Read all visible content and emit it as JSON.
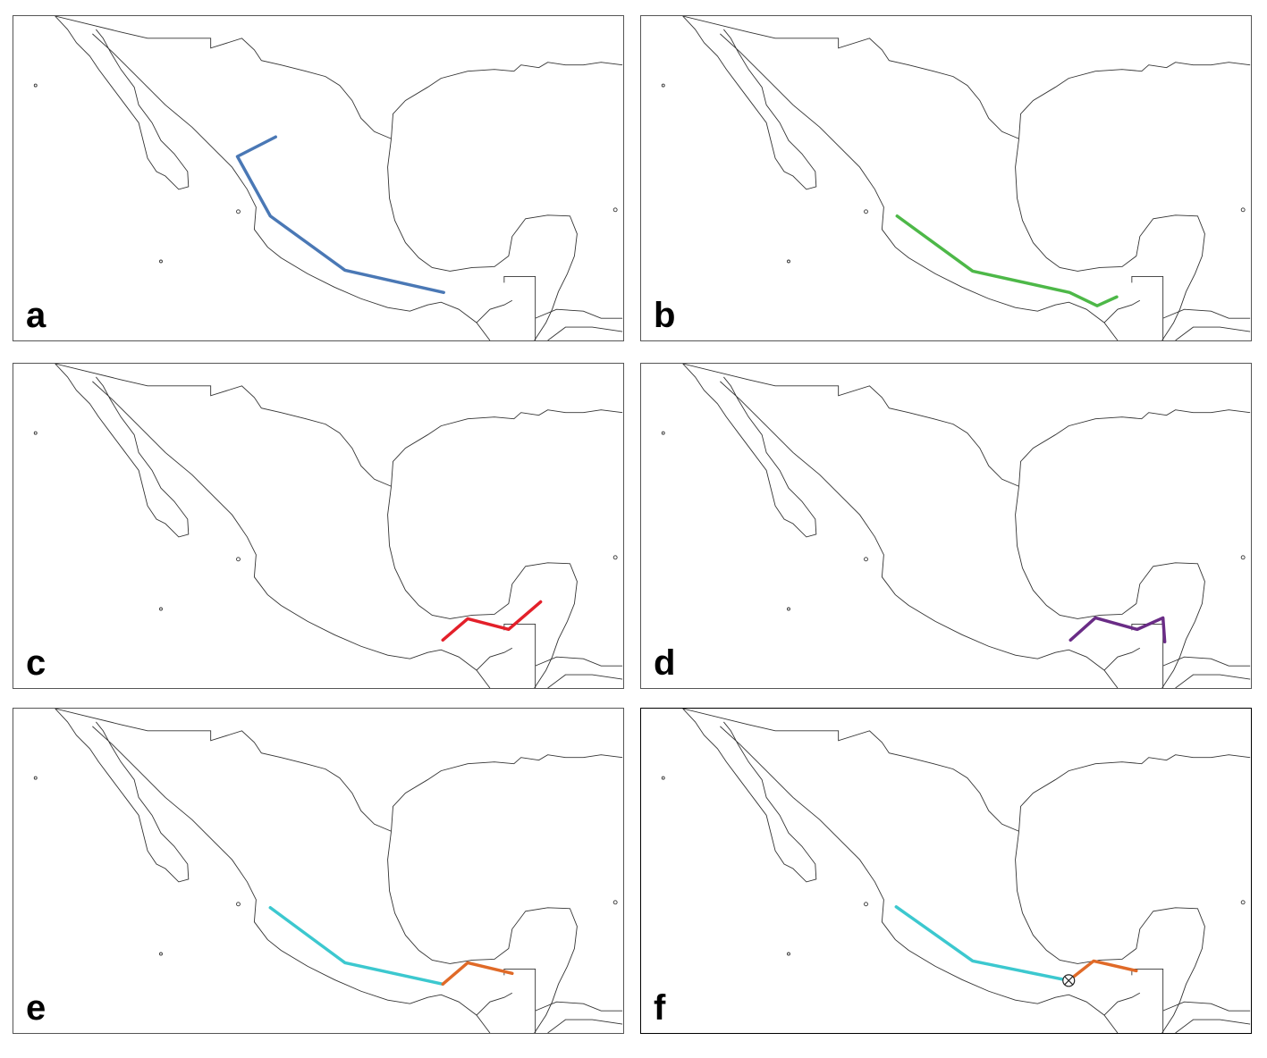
{
  "panels": [
    {
      "label": "a",
      "segments": [
        {
          "color": "#4a78b5"
        }
      ]
    },
    {
      "label": "b",
      "segments": [
        {
          "color": "#4db848"
        }
      ]
    },
    {
      "label": "c",
      "segments": [
        {
          "color": "#e3202a"
        }
      ]
    },
    {
      "label": "d",
      "segments": [
        {
          "color": "#6a2c86"
        }
      ]
    },
    {
      "label": "e",
      "segments": [
        {
          "color": "#3cc8cf"
        },
        {
          "color": "#e06a28"
        }
      ]
    },
    {
      "label": "f",
      "segments": [
        {
          "color": "#3cc8cf"
        },
        {
          "color": "#e06a28"
        }
      ],
      "junction_marker": "crossed-circle-icon"
    }
  ]
}
